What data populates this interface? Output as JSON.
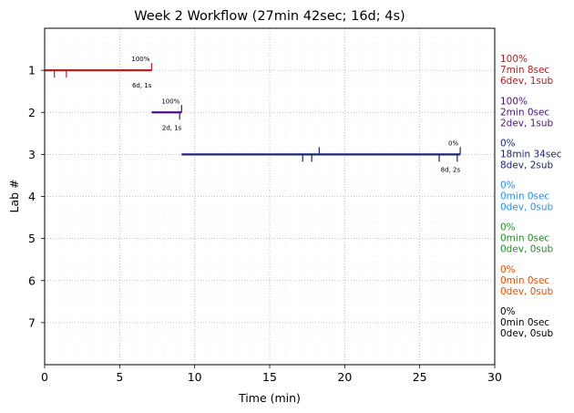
{
  "chart_data": {
    "type": "timeline",
    "title": "Week 2 Workflow (27min 42sec; 16d; 4s)",
    "xlabel": "Time (min)",
    "ylabel": "Lab #",
    "xlim": [
      0,
      30
    ],
    "ylim": [
      8,
      0
    ],
    "xticks": [
      0,
      5,
      10,
      15,
      20,
      25,
      30
    ],
    "yticks": [
      1,
      2,
      3,
      4,
      5,
      6,
      7
    ],
    "grid": true,
    "labs": [
      {
        "lab": 1,
        "color": "#b22222",
        "start": 0,
        "end": 7.13,
        "percent_label": "100%",
        "counts_label": "6d, 1s",
        "down_ticks": [
          0.65,
          1.45
        ],
        "up_ticks": [
          7.13
        ],
        "summary": [
          "100%",
          "7min 8sec",
          "6dev, 1sub"
        ]
      },
      {
        "lab": 2,
        "color": "#4b0f8c",
        "start": 7.13,
        "end": 9.13,
        "percent_label": "100%",
        "counts_label": "2d, 1s",
        "down_ticks": [
          9.0
        ],
        "up_ticks": [
          9.13
        ],
        "summary": [
          "100%",
          "2min 0sec",
          "2dev, 1sub"
        ]
      },
      {
        "lab": 3,
        "color": "#1a237e",
        "start": 9.13,
        "end": 27.7,
        "percent_label": "0%",
        "counts_label": "8d, 2s",
        "down_ticks": [
          17.2,
          17.8,
          26.3,
          27.5
        ],
        "up_ticks": [
          18.3,
          27.7
        ],
        "summary": [
          "0%",
          "18min 34sec",
          "8dev, 2sub"
        ]
      },
      {
        "lab": 4,
        "color": "#1e90ff",
        "summary": [
          "0%",
          "0min 0sec",
          "0dev, 0sub"
        ]
      },
      {
        "lab": 5,
        "color": "#228b22",
        "summary": [
          "0%",
          "0min 0sec",
          "0dev, 0sub"
        ]
      },
      {
        "lab": 6,
        "color": "#e65100",
        "summary": [
          "0%",
          "0min 0sec",
          "0dev, 0sub"
        ]
      },
      {
        "lab": 7,
        "color": "#000000",
        "summary": [
          "0%",
          "0min 0sec",
          "0dev, 0sub"
        ]
      }
    ]
  }
}
